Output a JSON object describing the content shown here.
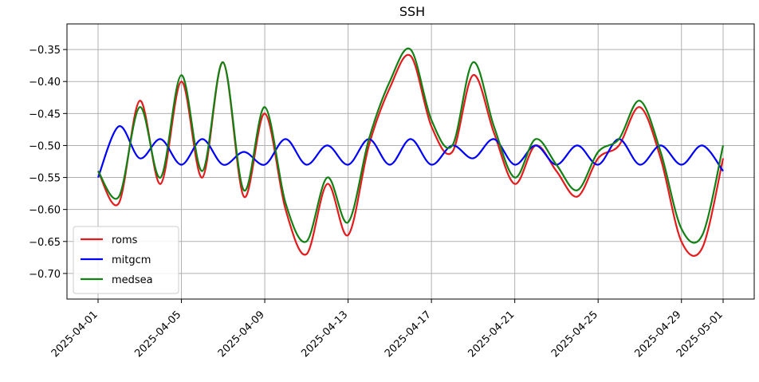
{
  "chart_data": {
    "type": "line",
    "title": "SSH",
    "xlabel": "",
    "ylabel": "",
    "xlim": [
      "2025-04-01",
      "2025-05-01"
    ],
    "ylim": [
      -0.74,
      -0.31
    ],
    "grid": true,
    "legend": {
      "placement": "lower-left"
    },
    "x_ticks": [
      "2025-04-01",
      "2025-04-05",
      "2025-04-09",
      "2025-04-13",
      "2025-04-17",
      "2025-04-21",
      "2025-04-25",
      "2025-04-29",
      "2025-05-01"
    ],
    "y_ticks": [
      -0.35,
      -0.4,
      -0.45,
      -0.5,
      -0.55,
      -0.6,
      -0.65,
      -0.7
    ],
    "y_tick_labels": [
      "−0.35",
      "−0.40",
      "−0.45",
      "−0.50",
      "−0.55",
      "−0.60",
      "−0.65",
      "−0.70"
    ],
    "x": [
      "2025-04-01",
      "2025-04-02",
      "2025-04-03",
      "2025-04-04",
      "2025-04-05",
      "2025-04-06",
      "2025-04-07",
      "2025-04-08",
      "2025-04-09",
      "2025-04-10",
      "2025-04-11",
      "2025-04-12",
      "2025-04-13",
      "2025-04-14",
      "2025-04-15",
      "2025-04-16",
      "2025-04-17",
      "2025-04-18",
      "2025-04-19",
      "2025-04-20",
      "2025-04-21",
      "2025-04-22",
      "2025-04-23",
      "2025-04-24",
      "2025-04-25",
      "2025-04-26",
      "2025-04-27",
      "2025-04-28",
      "2025-04-29",
      "2025-04-30",
      "2025-05-01"
    ],
    "series": [
      {
        "name": "roms",
        "color": "#e41a1c",
        "values": [
          -0.54,
          -0.59,
          -0.43,
          -0.56,
          -0.4,
          -0.55,
          -0.37,
          -0.58,
          -0.45,
          -0.6,
          -0.67,
          -0.56,
          -0.64,
          -0.5,
          -0.41,
          -0.36,
          -0.47,
          -0.51,
          -0.39,
          -0.48,
          -0.56,
          -0.5,
          -0.54,
          -0.58,
          -0.52,
          -0.5,
          -0.44,
          -0.52,
          -0.65,
          -0.66,
          -0.52
        ]
      },
      {
        "name": "mitgcm",
        "color": "#0000ff",
        "values": [
          -0.55,
          -0.47,
          -0.52,
          -0.49,
          -0.53,
          -0.49,
          -0.53,
          -0.51,
          -0.53,
          -0.49,
          -0.53,
          -0.5,
          -0.53,
          -0.49,
          -0.53,
          -0.49,
          -0.53,
          -0.5,
          -0.52,
          -0.49,
          -0.53,
          -0.5,
          -0.53,
          -0.5,
          -0.53,
          -0.49,
          -0.53,
          -0.5,
          -0.53,
          -0.5,
          -0.54
        ]
      },
      {
        "name": "medsea",
        "color": "#138013",
        "values": [
          -0.54,
          -0.58,
          -0.44,
          -0.55,
          -0.39,
          -0.54,
          -0.37,
          -0.57,
          -0.44,
          -0.59,
          -0.65,
          -0.55,
          -0.62,
          -0.49,
          -0.4,
          -0.35,
          -0.46,
          -0.5,
          -0.37,
          -0.47,
          -0.55,
          -0.49,
          -0.53,
          -0.57,
          -0.51,
          -0.49,
          -0.43,
          -0.51,
          -0.63,
          -0.64,
          -0.5
        ]
      }
    ]
  }
}
